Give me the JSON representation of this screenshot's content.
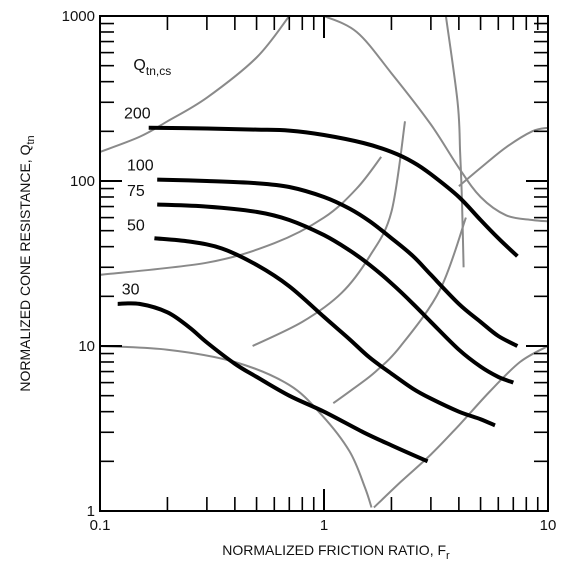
{
  "chart_data": {
    "type": "line",
    "xscale": "log",
    "yscale": "log",
    "xlim": [
      0.1,
      10
    ],
    "ylim": [
      1,
      1000
    ],
    "x_ticks": [
      "0.1",
      "1",
      "10"
    ],
    "y_ticks": [
      "1",
      "10",
      "100",
      "1000"
    ],
    "xlabel": "NORMALIZED FRICTION RATIO, F",
    "xlabel_sub": "r",
    "ylabel": "NORMALIZED CONE RESISTANCE, Q",
    "ylabel_sub": "tn",
    "legend_title": "Q",
    "legend_title_sub": "tn,cs",
    "grid": false,
    "colors": {
      "series": "#000000",
      "zones": "#8a8a8a",
      "axes": "#000000"
    },
    "series": [
      {
        "name": "200",
        "x": [
          0.165,
          0.3,
          0.5,
          0.7,
          1.0,
          1.5,
          2.0,
          2.5,
          3.0,
          4.0,
          5.0,
          6.0,
          7.3
        ],
        "y": [
          210,
          208,
          205,
          202,
          190,
          170,
          150,
          130,
          110,
          80,
          58,
          45,
          35
        ]
      },
      {
        "name": "100",
        "x": [
          0.18,
          0.3,
          0.5,
          0.7,
          1.0,
          1.3,
          1.6,
          2.0,
          2.5,
          3.0,
          4.0,
          5.0,
          6.0,
          7.3
        ],
        "y": [
          102,
          100,
          97,
          92,
          80,
          68,
          57,
          45,
          35,
          27,
          18,
          14,
          11.5,
          10
        ]
      },
      {
        "name": "75",
        "x": [
          0.18,
          0.3,
          0.5,
          0.7,
          1.0,
          1.3,
          1.6,
          2.0,
          2.5,
          3.0,
          4.0,
          5.0,
          6.0,
          7.0
        ],
        "y": [
          72,
          70,
          65,
          58,
          47,
          38,
          31,
          24,
          18,
          14,
          9.5,
          7.5,
          6.5,
          6.0
        ]
      },
      {
        "name": "50",
        "x": [
          0.175,
          0.25,
          0.35,
          0.5,
          0.7,
          1.0,
          1.3,
          1.6,
          2.0,
          2.5,
          3.0,
          4.0,
          5.0,
          5.8
        ],
        "y": [
          45,
          43,
          39,
          31,
          23,
          15,
          11,
          8.5,
          6.8,
          5.5,
          4.8,
          4.0,
          3.6,
          3.3
        ]
      },
      {
        "name": "30",
        "x": [
          0.12,
          0.15,
          0.2,
          0.25,
          0.3,
          0.4,
          0.5,
          0.7,
          1.0,
          1.5,
          2.0,
          2.9
        ],
        "y": [
          18,
          18,
          16,
          13,
          10.5,
          7.8,
          6.5,
          5.0,
          4.0,
          3.0,
          2.5,
          2.0
        ]
      }
    ],
    "zone_boundaries": [
      {
        "x": [
          0.1,
          0.15,
          0.2,
          0.3,
          0.5,
          0.7
        ],
        "y": [
          150,
          185,
          230,
          320,
          560,
          1000
        ]
      },
      {
        "x": [
          0.1,
          0.3,
          0.6,
          1.0,
          1.4,
          1.8
        ],
        "y": [
          27,
          32,
          42,
          60,
          90,
          140
        ]
      },
      {
        "x": [
          0.48,
          0.8,
          1.2,
          1.6,
          2.0,
          2.3
        ],
        "y": [
          10,
          14,
          21,
          35,
          65,
          230
        ]
      },
      {
        "x": [
          0.1,
          0.2,
          0.4,
          0.7,
          0.98,
          1.3,
          1.52,
          1.63
        ],
        "y": [
          10,
          9.5,
          8.0,
          5.8,
          3.8,
          2.3,
          1.4,
          1.05
        ]
      },
      {
        "x": [
          1.1,
          1.35,
          1.7,
          2.2,
          3.3,
          4.3
        ],
        "y": [
          4.5,
          5.5,
          7.0,
          10,
          22,
          60
        ]
      },
      {
        "x": [
          1.67,
          2.2,
          3.0,
          4.0,
          5.5,
          7.5,
          10
        ],
        "y": [
          1.05,
          1.5,
          2.2,
          3.3,
          5.3,
          8.0,
          10
        ]
      },
      {
        "x": [
          3.5,
          3.95,
          4.05,
          4.1,
          4.15,
          4.2
        ],
        "y": [
          1000,
          300,
          150,
          100,
          60,
          30
        ]
      },
      {
        "x": [
          1.0,
          1.4,
          2.0,
          3.0,
          4.0,
          5.0,
          6.5,
          8.5,
          10
        ],
        "y": [
          1000,
          800,
          450,
          220,
          120,
          80,
          62,
          58,
          57
        ]
      },
      {
        "x": [
          4.0,
          5.0,
          6.5,
          8.5,
          10
        ],
        "y": [
          93,
          120,
          160,
          200,
          210
        ]
      }
    ],
    "labels": [
      {
        "text": "200",
        "x": 0.128,
        "y": 240
      },
      {
        "text": "100",
        "x": 0.132,
        "y": 116
      },
      {
        "text": "75",
        "x": 0.132,
        "y": 81
      },
      {
        "text": "50",
        "x": 0.132,
        "y": 50
      },
      {
        "text": "30",
        "x": 0.125,
        "y": 20.5
      }
    ],
    "legend_title_pos": {
      "x": 0.141,
      "y": 470
    }
  }
}
